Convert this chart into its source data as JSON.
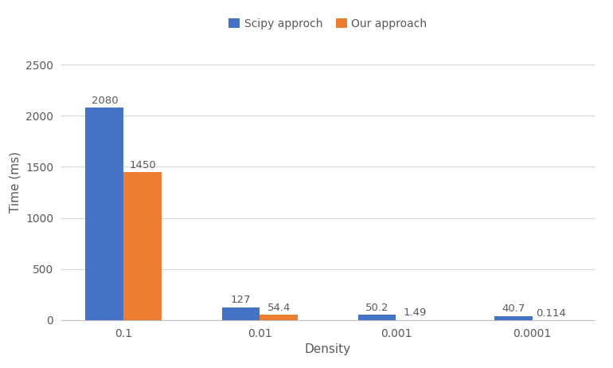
{
  "categories": [
    "0.1",
    "0.01",
    "0.001",
    "0.0001"
  ],
  "scipy_values": [
    2080,
    127,
    50.2,
    40.7
  ],
  "our_values": [
    1450,
    54.4,
    1.49,
    0.114
  ],
  "scipy_label": "Scipy approch",
  "our_label": "Our approach",
  "scipy_color": "#4472C4",
  "our_color": "#ED7D31",
  "xlabel": "Density",
  "ylabel": "Time (ms)",
  "ylim": [
    0,
    2700
  ],
  "yticks": [
    0,
    500,
    1000,
    1500,
    2000,
    2500
  ],
  "bar_width": 0.28,
  "axis_fontsize": 11,
  "tick_fontsize": 10,
  "label_fontsize": 9.5,
  "background_color": "#ffffff",
  "grid_color": "#d9d9d9"
}
